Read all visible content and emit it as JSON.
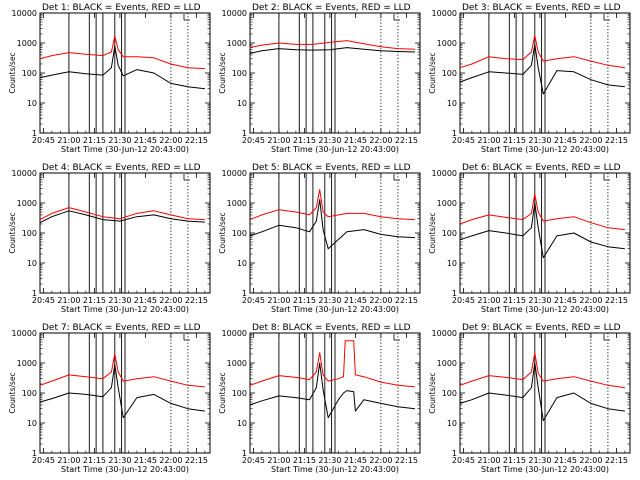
{
  "chart_data": [
    {
      "type": "line",
      "title": "Det 1: BLACK = Events, RED = LLD",
      "ylabel": "Counts/sec",
      "xlabel": "Start Time (30-Jun-12 20:43:00)",
      "x_ticks": [
        "20:45",
        "21:00",
        "21:15",
        "21:30",
        "21:45",
        "22:00",
        "22:15"
      ],
      "y_ticks": [
        "1",
        "10",
        "100",
        "1000",
        "10000"
      ],
      "ylim": [
        1,
        10000
      ],
      "y_scale": "log",
      "vlines_solid": [
        "21:00",
        "21:12",
        "21:16",
        "21:20",
        "21:27",
        "21:31",
        "21:33"
      ],
      "vlines_dotted": [
        "22:00",
        "22:10"
      ],
      "series": [
        {
          "color": "#ff0000",
          "x": [
            "20:43",
            "20:50",
            "21:00",
            "21:10",
            "21:20",
            "21:25",
            "21:27",
            "21:29",
            "21:32",
            "21:40",
            "21:50",
            "22:00",
            "22:10",
            "22:20"
          ],
          "values": [
            300,
            380,
            480,
            420,
            380,
            500,
            1700,
            600,
            350,
            350,
            320,
            200,
            150,
            140
          ]
        },
        {
          "color": "#000000",
          "x": [
            "20:43",
            "20:50",
            "21:00",
            "21:10",
            "21:20",
            "21:25",
            "21:27",
            "21:29",
            "21:32",
            "21:40",
            "21:50",
            "22:00",
            "22:10",
            "22:20"
          ],
          "values": [
            70,
            85,
            110,
            95,
            85,
            150,
            800,
            180,
            80,
            130,
            100,
            45,
            35,
            30
          ]
        }
      ]
    },
    {
      "type": "line",
      "title": "Det 2: BLACK = Events, RED = LLD",
      "ylabel": "Counts/sec",
      "xlabel": "Start Time (30-Jun-12 20:43:00)",
      "x_ticks": [
        "20:45",
        "21:00",
        "21:15",
        "21:30",
        "21:45",
        "22:00",
        "22:15"
      ],
      "y_ticks": [
        "1",
        "10",
        "100",
        "1000",
        "10000"
      ],
      "ylim": [
        1,
        10000
      ],
      "y_scale": "log",
      "vlines_solid": [
        "21:00",
        "21:12",
        "21:16",
        "21:20",
        "21:27",
        "21:31",
        "21:33"
      ],
      "vlines_dotted": [
        "22:00",
        "22:10"
      ],
      "series": [
        {
          "color": "#ff0000",
          "x": [
            "20:43",
            "20:50",
            "21:00",
            "21:10",
            "21:20",
            "21:30",
            "21:40",
            "21:50",
            "22:00",
            "22:10",
            "22:20"
          ],
          "values": [
            700,
            850,
            1000,
            900,
            900,
            1050,
            1200,
            950,
            750,
            650,
            620
          ]
        },
        {
          "color": "#000000",
          "x": [
            "20:43",
            "20:50",
            "21:00",
            "21:10",
            "21:20",
            "21:30",
            "21:40",
            "21:50",
            "22:00",
            "22:10",
            "22:20"
          ],
          "values": [
            450,
            550,
            650,
            600,
            580,
            600,
            700,
            620,
            550,
            520,
            500
          ]
        }
      ]
    },
    {
      "type": "line",
      "title": "Det 3: BLACK = Events, RED = LLD",
      "ylabel": "Counts/sec",
      "xlabel": "Start Time (30-Jun-12 20:43:00)",
      "x_ticks": [
        "20:45",
        "21:00",
        "21:15",
        "21:30",
        "21:45",
        "22:00",
        "22:15"
      ],
      "y_ticks": [
        "1",
        "10",
        "100",
        "1000",
        "10000"
      ],
      "ylim": [
        1,
        10000
      ],
      "y_scale": "log",
      "vlines_solid": [
        "21:00",
        "21:12",
        "21:16",
        "21:20",
        "21:27",
        "21:31",
        "21:33"
      ],
      "vlines_dotted": [
        "22:00",
        "22:10"
      ],
      "series": [
        {
          "color": "#ff0000",
          "x": [
            "20:43",
            "20:50",
            "21:00",
            "21:10",
            "21:20",
            "21:25",
            "21:27",
            "21:29",
            "21:32",
            "21:40",
            "21:50",
            "22:00",
            "22:10",
            "22:20"
          ],
          "values": [
            150,
            200,
            350,
            300,
            280,
            500,
            1800,
            500,
            250,
            300,
            350,
            250,
            180,
            150
          ]
        },
        {
          "color": "#000000",
          "x": [
            "20:43",
            "20:50",
            "21:00",
            "21:10",
            "21:20",
            "21:25",
            "21:27",
            "21:29",
            "21:32",
            "21:40",
            "21:50",
            "22:00",
            "22:10",
            "22:20"
          ],
          "values": [
            50,
            70,
            110,
            100,
            90,
            180,
            900,
            150,
            20,
            120,
            110,
            60,
            40,
            35
          ]
        }
      ]
    },
    {
      "type": "line",
      "title": "Det 4: BLACK = Events, RED = LLD",
      "ylabel": "Counts/sec",
      "xlabel": "Start Time (30-Jun-12 20:43:00)",
      "x_ticks": [
        "20:45",
        "21:00",
        "21:15",
        "21:30",
        "21:45",
        "22:00",
        "22:15"
      ],
      "y_ticks": [
        "1",
        "10",
        "100",
        "1000",
        "10000"
      ],
      "ylim": [
        1,
        10000
      ],
      "y_scale": "log",
      "vlines_solid": [
        "21:00",
        "21:12",
        "21:16",
        "21:20",
        "21:27",
        "21:31",
        "21:33"
      ],
      "vlines_dotted": [
        "22:00",
        "22:10"
      ],
      "series": [
        {
          "color": "#ff0000",
          "x": [
            "20:43",
            "20:50",
            "21:00",
            "21:10",
            "21:20",
            "21:30",
            "21:40",
            "21:50",
            "22:00",
            "22:10",
            "22:20"
          ],
          "values": [
            280,
            450,
            700,
            500,
            350,
            300,
            450,
            550,
            400,
            300,
            280
          ]
        },
        {
          "color": "#000000",
          "x": [
            "20:43",
            "20:50",
            "21:00",
            "21:10",
            "21:20",
            "21:30",
            "21:40",
            "21:50",
            "22:00",
            "22:10",
            "22:20"
          ],
          "values": [
            220,
            350,
            550,
            400,
            280,
            250,
            350,
            400,
            300,
            250,
            230
          ]
        }
      ]
    },
    {
      "type": "line",
      "title": "Det 5: BLACK = Events, RED = LLD",
      "ylabel": "Counts/sec",
      "xlabel": "Start Time (30-Jun-12 20:43:00)",
      "x_ticks": [
        "20:45",
        "21:00",
        "21:15",
        "21:30",
        "21:45",
        "22:00",
        "22:15"
      ],
      "y_ticks": [
        "1",
        "10",
        "100",
        "1000",
        "10000"
      ],
      "ylim": [
        1,
        10000
      ],
      "y_scale": "log",
      "vlines_solid": [
        "21:00",
        "21:12",
        "21:16",
        "21:20",
        "21:27",
        "21:31",
        "21:33"
      ],
      "vlines_dotted": [
        "22:00",
        "22:10"
      ],
      "series": [
        {
          "color": "#ff0000",
          "x": [
            "20:43",
            "20:50",
            "21:00",
            "21:10",
            "21:18",
            "21:22",
            "21:24",
            "21:26",
            "21:29",
            "21:40",
            "21:50",
            "22:00",
            "22:10",
            "22:20"
          ],
          "values": [
            280,
            400,
            600,
            500,
            400,
            700,
            2800,
            500,
            350,
            450,
            450,
            350,
            300,
            280
          ]
        },
        {
          "color": "#000000",
          "x": [
            "20:43",
            "20:50",
            "21:00",
            "21:10",
            "21:18",
            "21:22",
            "21:24",
            "21:26",
            "21:29",
            "21:40",
            "21:50",
            "22:00",
            "22:10",
            "22:20"
          ],
          "values": [
            80,
            110,
            180,
            150,
            110,
            250,
            1300,
            130,
            30,
            110,
            130,
            90,
            75,
            70
          ]
        }
      ]
    },
    {
      "type": "line",
      "title": "Det 6: BLACK = Events, RED = LLD",
      "ylabel": "Counts/sec",
      "xlabel": "Start Time (30-Jun-12 20:43:00)",
      "x_ticks": [
        "20:45",
        "21:00",
        "21:15",
        "21:30",
        "21:45",
        "22:00",
        "22:15"
      ],
      "y_ticks": [
        "1",
        "10",
        "100",
        "1000",
        "10000"
      ],
      "ylim": [
        1,
        10000
      ],
      "y_scale": "log",
      "vlines_solid": [
        "21:00",
        "21:12",
        "21:16",
        "21:20",
        "21:27",
        "21:31",
        "21:33"
      ],
      "vlines_dotted": [
        "22:00",
        "22:10"
      ],
      "series": [
        {
          "color": "#ff0000",
          "x": [
            "20:43",
            "20:50",
            "21:00",
            "21:10",
            "21:20",
            "21:25",
            "21:27",
            "21:29",
            "21:32",
            "21:40",
            "21:50",
            "22:00",
            "22:10",
            "22:20"
          ],
          "values": [
            200,
            280,
            400,
            330,
            280,
            450,
            2000,
            500,
            250,
            300,
            350,
            220,
            150,
            130
          ]
        },
        {
          "color": "#000000",
          "x": [
            "20:43",
            "20:50",
            "21:00",
            "21:10",
            "21:20",
            "21:25",
            "21:27",
            "21:29",
            "21:32",
            "21:40",
            "21:50",
            "22:00",
            "22:10",
            "22:20"
          ],
          "values": [
            60,
            80,
            120,
            100,
            80,
            150,
            1000,
            150,
            15,
            80,
            100,
            50,
            35,
            30
          ]
        }
      ]
    },
    {
      "type": "line",
      "title": "Det 7: BLACK = Events, RED = LLD",
      "ylabel": "Counts/sec",
      "xlabel": "Start Time (30-Jun-12 20:43:00)",
      "x_ticks": [
        "20:45",
        "21:00",
        "21:15",
        "21:30",
        "21:45",
        "22:00",
        "22:15"
      ],
      "y_ticks": [
        "1",
        "10",
        "100",
        "1000",
        "10000"
      ],
      "ylim": [
        1,
        10000
      ],
      "y_scale": "log",
      "vlines_solid": [
        "21:00",
        "21:12",
        "21:16",
        "21:20",
        "21:27",
        "21:31",
        "21:33"
      ],
      "vlines_dotted": [
        "22:00",
        "22:10"
      ],
      "series": [
        {
          "color": "#ff0000",
          "x": [
            "20:43",
            "20:50",
            "21:00",
            "21:10",
            "21:20",
            "21:25",
            "21:27",
            "21:29",
            "21:32",
            "21:40",
            "21:50",
            "22:00",
            "22:10",
            "22:20"
          ],
          "values": [
            180,
            250,
            400,
            350,
            300,
            500,
            2000,
            500,
            250,
            300,
            350,
            250,
            180,
            160
          ]
        },
        {
          "color": "#000000",
          "x": [
            "20:43",
            "20:50",
            "21:00",
            "21:10",
            "21:20",
            "21:25",
            "21:27",
            "21:29",
            "21:32",
            "21:40",
            "21:50",
            "22:00",
            "22:10",
            "22:20"
          ],
          "values": [
            50,
            65,
            100,
            90,
            75,
            150,
            900,
            150,
            15,
            70,
            90,
            45,
            30,
            25
          ]
        }
      ]
    },
    {
      "type": "line",
      "title": "Det 8: BLACK = Events, RED = LLD",
      "ylabel": "Counts/sec",
      "xlabel": "Start Time (30-Jun-12 20:43:00)",
      "x_ticks": [
        "20:45",
        "21:00",
        "21:15",
        "21:30",
        "21:45",
        "22:00",
        "22:15"
      ],
      "y_ticks": [
        "1",
        "10",
        "100",
        "1000",
        "10000"
      ],
      "ylim": [
        1,
        10000
      ],
      "y_scale": "log",
      "vlines_solid": [
        "21:00",
        "21:12",
        "21:16",
        "21:20",
        "21:27",
        "21:31",
        "21:33"
      ],
      "vlines_dotted": [
        "22:00",
        "22:10"
      ],
      "series": [
        {
          "color": "#ff0000",
          "x": [
            "20:43",
            "20:50",
            "21:00",
            "21:10",
            "21:18",
            "21:22",
            "21:24",
            "21:26",
            "21:29",
            "21:35",
            "21:38",
            "21:39",
            "21:44",
            "21:45",
            "21:50",
            "22:00",
            "22:10",
            "22:20"
          ],
          "values": [
            180,
            250,
            380,
            330,
            280,
            500,
            2200,
            400,
            250,
            300,
            350,
            5500,
            5500,
            400,
            350,
            230,
            180,
            160
          ]
        },
        {
          "color": "#000000",
          "x": [
            "20:43",
            "20:50",
            "21:00",
            "21:10",
            "21:18",
            "21:22",
            "21:24",
            "21:26",
            "21:29",
            "21:35",
            "21:38",
            "21:40",
            "21:44",
            "21:45",
            "21:50",
            "22:00",
            "22:10",
            "22:20"
          ],
          "values": [
            40,
            55,
            80,
            70,
            60,
            150,
            1000,
            130,
            15,
            60,
            100,
            120,
            110,
            25,
            60,
            45,
            35,
            30
          ]
        }
      ]
    },
    {
      "type": "line",
      "title": "Det 9: BLACK = Events, RED = LLD",
      "ylabel": "Counts/sec",
      "xlabel": "Start Time (30-Jun-12 20:43:00)",
      "x_ticks": [
        "20:45",
        "21:00",
        "21:15",
        "21:30",
        "21:45",
        "22:00",
        "22:15"
      ],
      "y_ticks": [
        "1",
        "10",
        "100",
        "1000",
        "10000"
      ],
      "ylim": [
        1,
        10000
      ],
      "y_scale": "log",
      "vlines_solid": [
        "21:00",
        "21:12",
        "21:16",
        "21:20",
        "21:27",
        "21:31",
        "21:33"
      ],
      "vlines_dotted": [
        "22:00",
        "22:10"
      ],
      "series": [
        {
          "color": "#ff0000",
          "x": [
            "20:43",
            "20:50",
            "21:00",
            "21:10",
            "21:20",
            "21:25",
            "21:27",
            "21:29",
            "21:32",
            "21:40",
            "21:50",
            "22:00",
            "22:10",
            "22:20"
          ],
          "values": [
            180,
            250,
            380,
            330,
            280,
            500,
            2200,
            450,
            250,
            300,
            350,
            250,
            180,
            150
          ]
        },
        {
          "color": "#000000",
          "x": [
            "20:43",
            "20:50",
            "21:00",
            "21:10",
            "21:20",
            "21:25",
            "21:27",
            "21:29",
            "21:32",
            "21:40",
            "21:50",
            "22:00",
            "22:10",
            "22:20"
          ],
          "values": [
            45,
            60,
            100,
            85,
            70,
            150,
            1000,
            150,
            12,
            70,
            100,
            45,
            30,
            25
          ]
        }
      ]
    }
  ]
}
